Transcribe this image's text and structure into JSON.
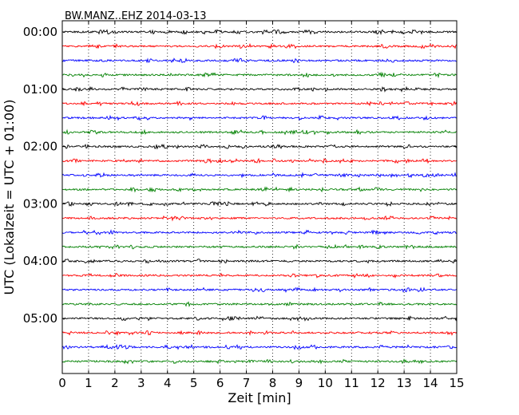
{
  "chart_data": {
    "type": "line",
    "title": "BW.MANZ..EHZ 2014-03-13",
    "xlabel": "Zeit  [min]",
    "ylabel": "UTC (Lokalzeit = UTC + 01:00)",
    "xlim": [
      0,
      15
    ],
    "x_ticks": [
      "0",
      "1",
      "2",
      "3",
      "4",
      "5",
      "6",
      "7",
      "8",
      "9",
      "10",
      "11",
      "12",
      "13",
      "14",
      "15"
    ],
    "y_tick_labels": [
      "00:00",
      "01:00",
      "02:00",
      "03:00",
      "04:00",
      "05:00"
    ],
    "grid": "vertical dotted",
    "trace_interval_minutes": 15,
    "trace_colors": [
      "#000000",
      "#ff0000",
      "#0000ff",
      "#008000"
    ],
    "traces": [
      {
        "start": "00:00",
        "color": "#000000"
      },
      {
        "start": "00:15",
        "color": "#ff0000"
      },
      {
        "start": "00:30",
        "color": "#0000ff"
      },
      {
        "start": "00:45",
        "color": "#008000"
      },
      {
        "start": "01:00",
        "color": "#000000"
      },
      {
        "start": "01:15",
        "color": "#ff0000"
      },
      {
        "start": "01:30",
        "color": "#0000ff"
      },
      {
        "start": "01:45",
        "color": "#008000"
      },
      {
        "start": "02:00",
        "color": "#000000"
      },
      {
        "start": "02:15",
        "color": "#ff0000"
      },
      {
        "start": "02:30",
        "color": "#0000ff"
      },
      {
        "start": "02:45",
        "color": "#008000"
      },
      {
        "start": "03:00",
        "color": "#000000"
      },
      {
        "start": "03:15",
        "color": "#ff0000"
      },
      {
        "start": "03:30",
        "color": "#0000ff"
      },
      {
        "start": "03:45",
        "color": "#008000"
      },
      {
        "start": "04:00",
        "color": "#000000"
      },
      {
        "start": "04:15",
        "color": "#ff0000"
      },
      {
        "start": "04:30",
        "color": "#0000ff"
      },
      {
        "start": "04:45",
        "color": "#008000"
      },
      {
        "start": "05:00",
        "color": "#000000"
      },
      {
        "start": "05:15",
        "color": "#ff0000"
      },
      {
        "start": "05:30",
        "color": "#0000ff"
      },
      {
        "start": "05:45",
        "color": "#008000"
      }
    ]
  }
}
